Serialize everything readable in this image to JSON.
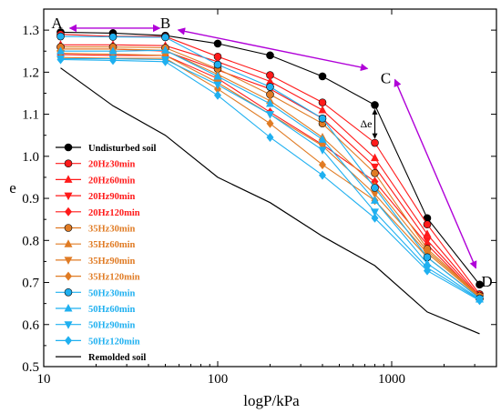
{
  "chart_data": {
    "type": "line",
    "xlabel": "logP/kPa",
    "ylabel": "e",
    "xscale": "log",
    "xlim": [
      10,
      4000
    ],
    "ylim": [
      0.5,
      1.35
    ],
    "xticks": [
      10,
      100,
      1000
    ],
    "xtick_labels": [
      "10",
      "100",
      "1000"
    ],
    "yticks": [
      0.5,
      0.6,
      0.7,
      0.8,
      0.9,
      1.0,
      1.1,
      1.2,
      1.3
    ],
    "ytick_labels": [
      "0.5",
      "0.6",
      "0.7",
      "0.8",
      "0.9",
      "1.0",
      "1.1",
      "1.2",
      "1.3"
    ],
    "legend_position": "left",
    "x": [
      12.5,
      25,
      50,
      100,
      200,
      400,
      800,
      1600,
      3200
    ],
    "series": [
      {
        "name": "Undisturbed soil",
        "color": "#000000",
        "marker": "circle",
        "values": [
          1.295,
          1.293,
          1.287,
          1.268,
          1.24,
          1.19,
          1.122,
          0.853,
          0.695
        ]
      },
      {
        "name": "20Hz30min",
        "color": "#ff1a1a",
        "marker": "circle",
        "values": [
          1.29,
          1.285,
          1.285,
          1.237,
          1.193,
          1.128,
          1.032,
          0.838,
          0.672
        ]
      },
      {
        "name": "20Hz60min",
        "color": "#ff1a1a",
        "marker": "triangle-up",
        "values": [
          1.265,
          1.265,
          1.263,
          1.225,
          1.178,
          1.11,
          0.996,
          0.815,
          0.668
        ]
      },
      {
        "name": "20Hz90min",
        "color": "#ff1a1a",
        "marker": "triangle-down",
        "values": [
          1.255,
          1.255,
          1.25,
          1.205,
          1.16,
          1.09,
          0.975,
          0.8,
          0.666
        ]
      },
      {
        "name": "20Hz120min",
        "color": "#ff1a1a",
        "marker": "diamond",
        "values": [
          1.242,
          1.24,
          1.24,
          1.185,
          1.105,
          1.028,
          0.94,
          0.79,
          0.664
        ]
      },
      {
        "name": "35Hz30min",
        "color": "#e07b24",
        "marker": "circle",
        "values": [
          1.26,
          1.26,
          1.258,
          1.208,
          1.147,
          1.078,
          0.96,
          0.78,
          0.668
        ]
      },
      {
        "name": "35Hz60min",
        "color": "#e07b24",
        "marker": "triangle-up",
        "values": [
          1.255,
          1.255,
          1.252,
          1.195,
          1.132,
          1.045,
          0.93,
          0.775,
          0.667
        ]
      },
      {
        "name": "35Hz90min",
        "color": "#e07b24",
        "marker": "triangle-down",
        "values": [
          1.245,
          1.243,
          1.24,
          1.175,
          1.1,
          1.025,
          0.91,
          0.77,
          0.665
        ]
      },
      {
        "name": "35Hz120min",
        "color": "#e07b24",
        "marker": "diamond",
        "values": [
          1.235,
          1.233,
          1.233,
          1.16,
          1.078,
          0.98,
          0.895,
          0.76,
          0.663
        ]
      },
      {
        "name": "50Hz30min",
        "color": "#1fb0f0",
        "marker": "circle",
        "values": [
          1.285,
          1.284,
          1.283,
          1.218,
          1.165,
          1.09,
          0.925,
          0.76,
          0.662
        ]
      },
      {
        "name": "50Hz60min",
        "color": "#1fb0f0",
        "marker": "triangle-up",
        "values": [
          1.25,
          1.25,
          1.252,
          1.19,
          1.125,
          1.04,
          0.895,
          0.745,
          0.66
        ]
      },
      {
        "name": "50Hz90min",
        "color": "#1fb0f0",
        "marker": "triangle-down",
        "values": [
          1.232,
          1.232,
          1.23,
          1.17,
          1.1,
          1.015,
          0.868,
          0.735,
          0.659
        ]
      },
      {
        "name": "50Hz120min",
        "color": "#1fb0f0",
        "marker": "diamond",
        "values": [
          1.23,
          1.228,
          1.225,
          1.145,
          1.045,
          0.955,
          0.853,
          0.728,
          0.657
        ]
      },
      {
        "name": "Remolded soil",
        "color": "#000000",
        "marker": "none",
        "x": [
          12.5,
          25,
          50,
          100,
          200,
          400,
          800,
          1600,
          3200
        ],
        "values": [
          1.21,
          1.12,
          1.05,
          0.95,
          0.89,
          0.81,
          0.74,
          0.63,
          0.578
        ]
      }
    ],
    "annotations": {
      "points": [
        {
          "label": "A",
          "x": 12.5,
          "y": 1.322
        },
        {
          "label": "B",
          "x": 50,
          "y": 1.322
        },
        {
          "label": "C",
          "x": 800,
          "y": 1.122
        },
        {
          "label": "D",
          "x": 3200,
          "y": 0.695
        }
      ],
      "delta_label": "Δe",
      "arrow_color": "#b000d8"
    }
  }
}
